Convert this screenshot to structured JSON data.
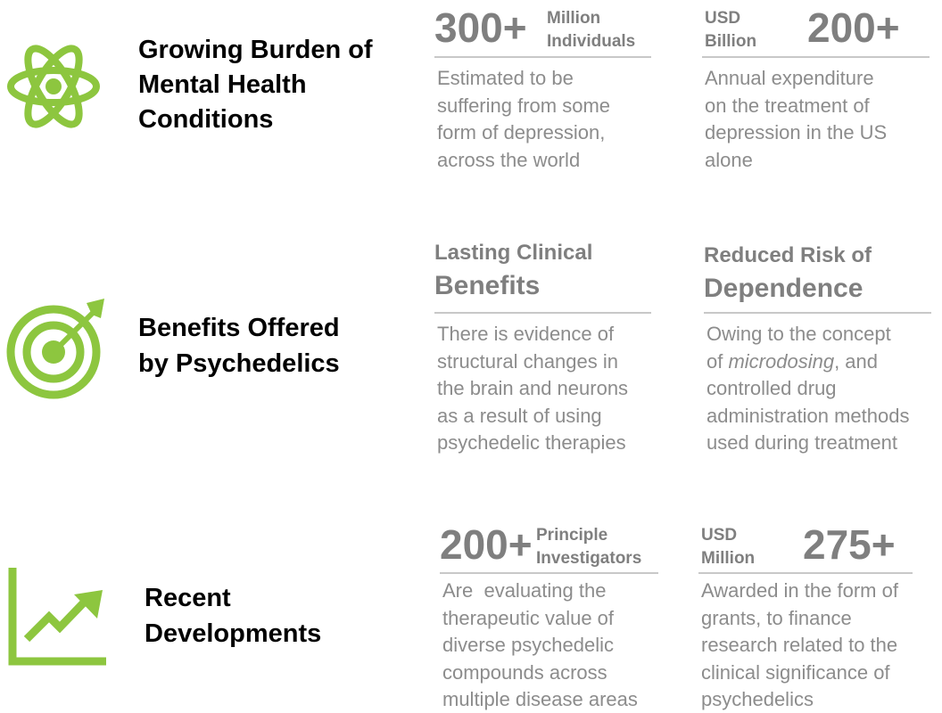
{
  "sections": [
    {
      "title": [
        "Growing Burden of",
        "Mental Health",
        "Conditions"
      ],
      "cards": [
        {
          "number": "300+",
          "unit": [
            "Million",
            "Individuals"
          ],
          "description": [
            "Estimated to be",
            "suffering from some",
            "form of depression,",
            "across the world"
          ]
        },
        {
          "number": "200+",
          "unit": [
            "USD",
            "Billion"
          ],
          "description": [
            "Annual expenditure",
            "on the treatment of",
            "depression in the US",
            "alone"
          ]
        }
      ]
    },
    {
      "title": [
        "Benefits Offered",
        "by Psychedelics"
      ],
      "cards": [
        {
          "heading": [
            "Lasting Clinical",
            "Benefits"
          ],
          "description": [
            "There is evidence of",
            "structural changes in",
            "the brain and neurons",
            "as a result of using",
            "psychedelic therapies"
          ]
        },
        {
          "heading": [
            "Reduced Risk of",
            "Dependence"
          ],
          "description": [
            "Owing to the concept",
            [
              {
                "text": "of "
              },
              {
                "text": "microdosing",
                "italic": true
              },
              {
                "text": ", and"
              }
            ],
            "controlled drug",
            "administration methods",
            "used during treatment"
          ]
        }
      ]
    },
    {
      "title": [
        "Recent",
        "Developments"
      ],
      "cards": [
        {
          "number": "200+",
          "unit": [
            "Principle",
            "Investigators"
          ],
          "description": [
            "Are  evaluating the",
            "therapeutic value of",
            "diverse psychedelic",
            "compounds across",
            "multiple disease areas"
          ]
        },
        {
          "number": "275+",
          "unit": [
            "USD",
            "Million"
          ],
          "description": [
            "Awarded in the form of",
            "grants, to finance",
            "research related to the",
            "clinical significance of",
            "psychedelics"
          ]
        }
      ]
    }
  ]
}
